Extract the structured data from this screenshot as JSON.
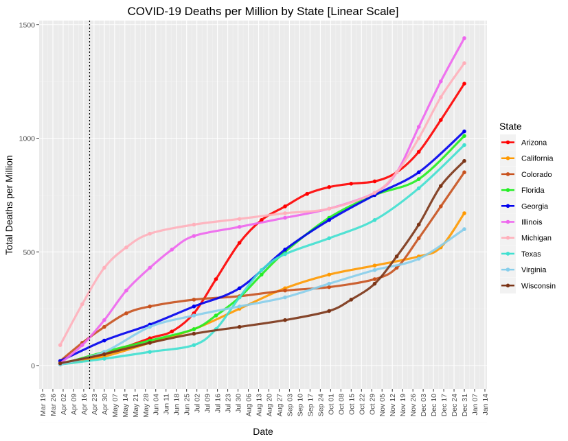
{
  "chart_data": {
    "type": "line",
    "title": "COVID-19 Deaths per Million by State [Linear Scale]",
    "xlabel": "Date",
    "ylabel": "Total Deaths per Million",
    "legend_title": "State",
    "legend_position": "right",
    "grid": true,
    "ylim": [
      -100,
      1510
    ],
    "xlim": [
      "2020-03-19",
      "2021-01-14"
    ],
    "y_ticks": [
      0,
      500,
      1000,
      1500
    ],
    "x_ticks": [
      "Mar 19",
      "Mar 26",
      "Apr 02",
      "Apr 09",
      "Apr 16",
      "Apr 23",
      "Apr 30",
      "May 07",
      "May 14",
      "May 21",
      "May 28",
      "Jun 04",
      "Jun 11",
      "Jun 18",
      "Jun 25",
      "Jul 02",
      "Jul 09",
      "Jul 16",
      "Jul 23",
      "Jul 30",
      "Aug 06",
      "Aug 13",
      "Aug 20",
      "Aug 27",
      "Sep 03",
      "Sep 10",
      "Sep 17",
      "Sep 24",
      "Oct 01",
      "Oct 08",
      "Oct 15",
      "Oct 22",
      "Oct 29",
      "Nov 05",
      "Nov 12",
      "Nov 19",
      "Nov 26",
      "Dec 03",
      "Dec 10",
      "Dec 17",
      "Dec 24",
      "Dec 31",
      "Jan 07",
      "Jan 14"
    ],
    "x_tick_dates": [
      "2020-03-19",
      "2020-03-26",
      "2020-04-02",
      "2020-04-09",
      "2020-04-16",
      "2020-04-23",
      "2020-04-30",
      "2020-05-07",
      "2020-05-14",
      "2020-05-21",
      "2020-05-28",
      "2020-06-04",
      "2020-06-11",
      "2020-06-18",
      "2020-06-25",
      "2020-07-02",
      "2020-07-09",
      "2020-07-16",
      "2020-07-23",
      "2020-07-30",
      "2020-08-06",
      "2020-08-13",
      "2020-08-20",
      "2020-08-27",
      "2020-09-03",
      "2020-09-10",
      "2020-09-17",
      "2020-09-24",
      "2020-10-01",
      "2020-10-08",
      "2020-10-15",
      "2020-10-22",
      "2020-10-29",
      "2020-11-05",
      "2020-11-12",
      "2020-11-19",
      "2020-11-26",
      "2020-12-03",
      "2020-12-10",
      "2020-12-17",
      "2020-12-24",
      "2020-12-31",
      "2021-01-07",
      "2021-01-14"
    ],
    "vline_date": "2020-04-20",
    "series": [
      {
        "name": "Arizona",
        "color": "#ff0000",
        "x": [
          "2020-03-31",
          "2020-04-30",
          "2020-05-31",
          "2020-06-15",
          "2020-06-30",
          "2020-07-15",
          "2020-07-31",
          "2020-08-15",
          "2020-08-31",
          "2020-09-15",
          "2020-09-30",
          "2020-10-15",
          "2020-10-31",
          "2020-11-15",
          "2020-11-30",
          "2020-12-15",
          "2020-12-31"
        ],
        "y": [
          5,
          50,
          120,
          150,
          230,
          380,
          540,
          640,
          700,
          755,
          785,
          800,
          810,
          850,
          940,
          1080,
          1240
        ]
      },
      {
        "name": "California",
        "color": "#ff9900",
        "x": [
          "2020-03-31",
          "2020-04-30",
          "2020-05-31",
          "2020-06-30",
          "2020-07-31",
          "2020-08-31",
          "2020-09-30",
          "2020-10-31",
          "2020-11-30",
          "2020-12-15",
          "2020-12-31"
        ],
        "y": [
          5,
          40,
          100,
          160,
          250,
          340,
          400,
          440,
          480,
          520,
          670
        ]
      },
      {
        "name": "Colorado",
        "color": "#c8521e",
        "x": [
          "2020-03-31",
          "2020-04-15",
          "2020-04-30",
          "2020-05-15",
          "2020-05-31",
          "2020-06-30",
          "2020-07-31",
          "2020-08-31",
          "2020-09-30",
          "2020-10-31",
          "2020-11-15",
          "2020-11-30",
          "2020-12-15",
          "2020-12-31"
        ],
        "y": [
          20,
          100,
          170,
          230,
          260,
          290,
          305,
          330,
          345,
          380,
          430,
          560,
          700,
          850
        ]
      },
      {
        "name": "Florida",
        "color": "#22ee22",
        "x": [
          "2020-03-31",
          "2020-04-30",
          "2020-05-31",
          "2020-06-30",
          "2020-07-15",
          "2020-07-31",
          "2020-08-15",
          "2020-08-31",
          "2020-09-30",
          "2020-10-31",
          "2020-11-30",
          "2020-12-31"
        ],
        "y": [
          5,
          60,
          110,
          160,
          220,
          300,
          400,
          500,
          650,
          750,
          820,
          1010
        ]
      },
      {
        "name": "Georgia",
        "color": "#0000ee",
        "x": [
          "2020-03-31",
          "2020-04-30",
          "2020-05-31",
          "2020-06-30",
          "2020-07-31",
          "2020-08-31",
          "2020-09-30",
          "2020-10-31",
          "2020-11-30",
          "2020-12-31"
        ],
        "y": [
          20,
          110,
          180,
          260,
          340,
          510,
          640,
          750,
          850,
          1030
        ]
      },
      {
        "name": "Illinois",
        "color": "#ee66ee",
        "x": [
          "2020-03-31",
          "2020-04-15",
          "2020-04-30",
          "2020-05-15",
          "2020-05-31",
          "2020-06-15",
          "2020-06-30",
          "2020-07-31",
          "2020-08-31",
          "2020-09-30",
          "2020-10-31",
          "2020-11-15",
          "2020-11-30",
          "2020-12-15",
          "2020-12-31"
        ],
        "y": [
          10,
          90,
          200,
          330,
          430,
          510,
          570,
          610,
          650,
          690,
          760,
          850,
          1050,
          1250,
          1440
        ]
      },
      {
        "name": "Michigan",
        "color": "#ffb0bb",
        "x": [
          "2020-03-31",
          "2020-04-15",
          "2020-04-30",
          "2020-05-15",
          "2020-05-31",
          "2020-06-30",
          "2020-07-31",
          "2020-08-31",
          "2020-09-30",
          "2020-10-31",
          "2020-11-15",
          "2020-11-30",
          "2020-12-15",
          "2020-12-31"
        ],
        "y": [
          90,
          270,
          430,
          520,
          580,
          620,
          645,
          670,
          690,
          760,
          850,
          1000,
          1180,
          1330
        ]
      },
      {
        "name": "Texas",
        "color": "#40e0d0",
        "x": [
          "2020-03-31",
          "2020-04-30",
          "2020-05-31",
          "2020-06-30",
          "2020-07-15",
          "2020-07-31",
          "2020-08-15",
          "2020-08-31",
          "2020-09-30",
          "2020-10-31",
          "2020-11-30",
          "2020-12-31"
        ],
        "y": [
          5,
          30,
          60,
          90,
          160,
          300,
          420,
          490,
          560,
          640,
          780,
          970
        ]
      },
      {
        "name": "Virginia",
        "color": "#87ceeb",
        "x": [
          "2020-03-31",
          "2020-04-30",
          "2020-05-31",
          "2020-06-30",
          "2020-07-31",
          "2020-08-31",
          "2020-09-30",
          "2020-10-31",
          "2020-11-30",
          "2020-12-31"
        ],
        "y": [
          5,
          60,
          170,
          220,
          260,
          300,
          360,
          420,
          470,
          600
        ]
      },
      {
        "name": "Wisconsin",
        "color": "#7b3416",
        "x": [
          "2020-03-31",
          "2020-04-30",
          "2020-05-31",
          "2020-06-30",
          "2020-07-31",
          "2020-08-31",
          "2020-09-30",
          "2020-10-15",
          "2020-10-31",
          "2020-11-15",
          "2020-11-30",
          "2020-12-15",
          "2020-12-31"
        ],
        "y": [
          10,
          50,
          100,
          140,
          170,
          200,
          240,
          290,
          360,
          480,
          620,
          790,
          900
        ]
      }
    ]
  }
}
